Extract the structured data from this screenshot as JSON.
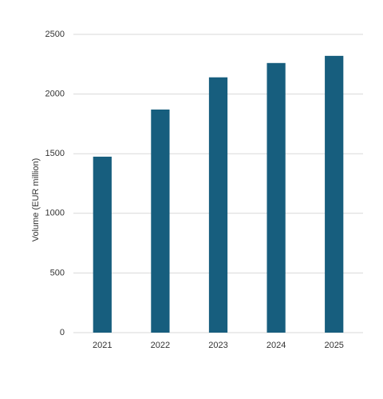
{
  "chart_data": {
    "type": "bar",
    "y_label": "Volume (EUR million)",
    "categories": [
      "2021",
      "2022",
      "2023",
      "2024",
      "2025"
    ],
    "values": [
      1475,
      1870,
      2140,
      2260,
      2320
    ],
    "color": "#175e7e",
    "ylim": [
      0,
      2500
    ],
    "yticks": [
      0,
      500,
      1000,
      1500,
      2000,
      2500
    ],
    "grid": true
  }
}
